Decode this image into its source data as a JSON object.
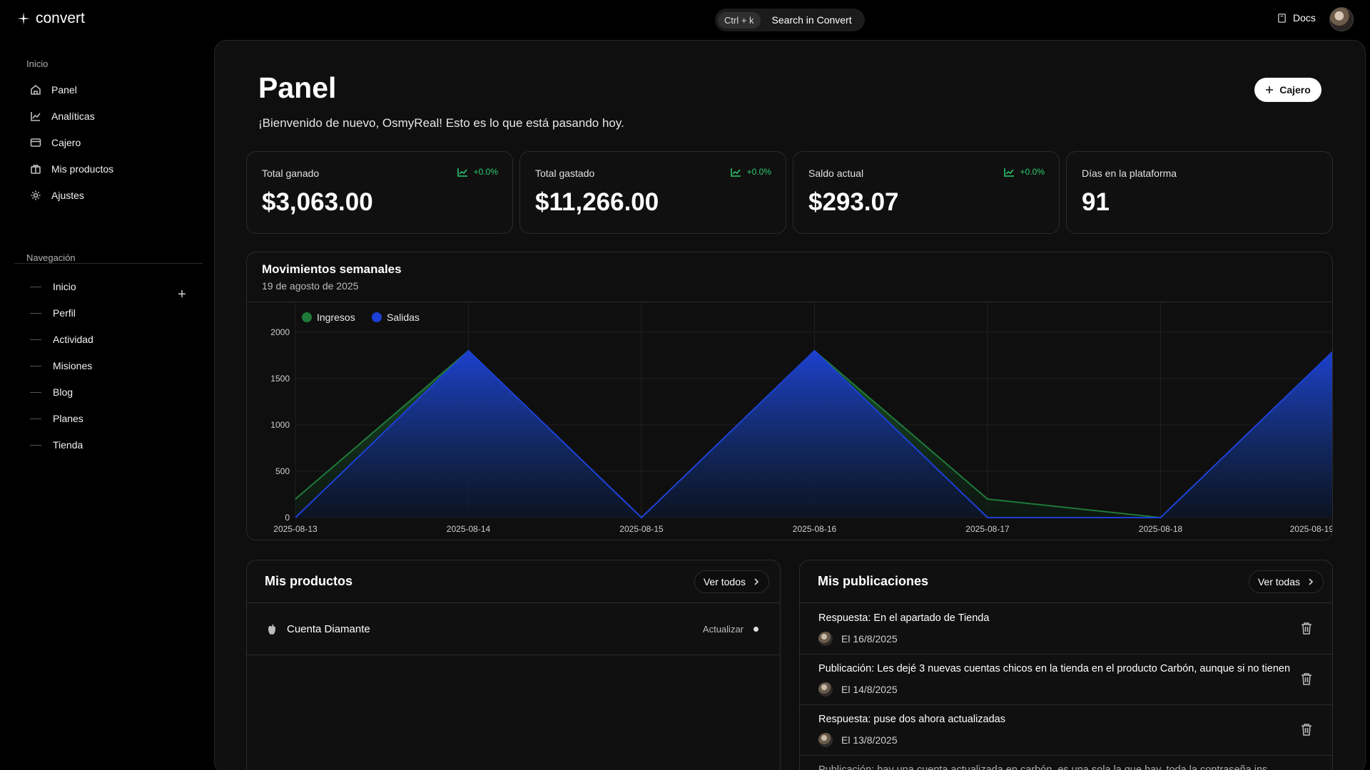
{
  "app": {
    "name": "convert"
  },
  "search": {
    "shortcut": "Ctrl + k",
    "label": "Search in Convert"
  },
  "header": {
    "docs_label": "Docs"
  },
  "sidebar": {
    "section_label": "Inicio",
    "items": [
      {
        "label": "Panel",
        "icon": "home-icon"
      },
      {
        "label": "Analíticas",
        "icon": "chart-icon"
      },
      {
        "label": "Cajero",
        "icon": "card-icon"
      },
      {
        "label": "Mis productos",
        "icon": "package-icon"
      },
      {
        "label": "Ajustes",
        "icon": "gear-icon"
      }
    ],
    "nav_section_label": "Navegación",
    "nav_items": [
      "Inicio",
      "Perfil",
      "Actividad",
      "Misiones",
      "Blog",
      "Planes",
      "Tienda"
    ]
  },
  "page": {
    "title": "Panel",
    "welcome": "¡Bienvenido de nuevo, OsmyReal! Esto es lo que está pasando hoy.",
    "action_button": "Cajero"
  },
  "stats": [
    {
      "label": "Total ganado",
      "value": "$3,063.00",
      "trend": "+0.0%"
    },
    {
      "label": "Total gastado",
      "value": "$11,266.00",
      "trend": "+0.0%"
    },
    {
      "label": "Saldo actual",
      "value": "$293.07",
      "trend": "+0.0%"
    },
    {
      "label": "Días en la plataforma",
      "value": "91"
    }
  ],
  "colors": {
    "ingresos": "#1f7a3a",
    "salidas": "#1d3fd6",
    "trend": "#2ecc71"
  },
  "chart_data": {
    "type": "area",
    "title": "Movimientos semanales",
    "subtitle": "19 de agosto de 2025",
    "categories": [
      "2025-08-13",
      "2025-08-14",
      "2025-08-15",
      "2025-08-16",
      "2025-08-17",
      "2025-08-18",
      "2025-08-19"
    ],
    "series": [
      {
        "name": "Ingresos",
        "values": [
          200,
          1800,
          0,
          1800,
          200,
          0,
          1800
        ]
      },
      {
        "name": "Salidas",
        "values": [
          0,
          1800,
          0,
          1800,
          0,
          0,
          1800
        ]
      }
    ],
    "yticks": [
      0,
      500,
      1000,
      1500,
      2000
    ],
    "ylim": [
      0,
      2000
    ],
    "legend": "top-left"
  },
  "products": {
    "title": "Mis productos",
    "view_all": "Ver todos",
    "items": [
      {
        "name": "Cuenta Diamante",
        "status": "Actualizar"
      }
    ]
  },
  "publications": {
    "title": "Mis publicaciones",
    "view_all": "Ver todas",
    "items": [
      {
        "text": "Respuesta: En el apartado de Tienda",
        "date": "El 16/8/2025"
      },
      {
        "text": "Publicación: Les dejé 3 nuevas cuentas chicos en la tienda en el producto Carbón, aunque si no tienen",
        "date": "El 14/8/2025"
      },
      {
        "text": "Respuesta: puse dos ahora actualizadas",
        "date": "El 13/8/2025"
      },
      {
        "text": "Publicación: hay una cuenta actualizada en carbón, es una sola la que hay, toda la contraseña ins",
        "date": ""
      }
    ]
  }
}
